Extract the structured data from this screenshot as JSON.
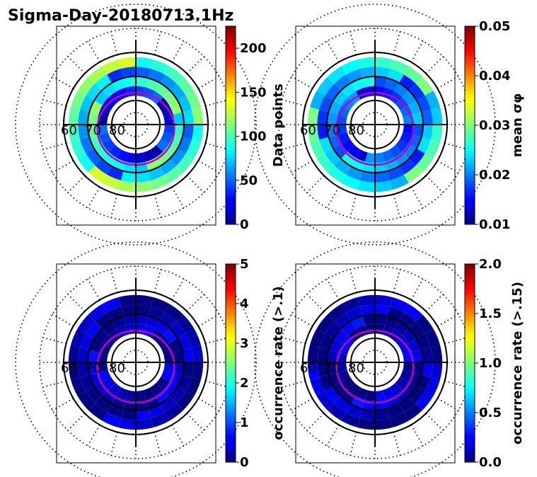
{
  "figure": {
    "title": "Sigma-Day-20180713.1Hz"
  },
  "chart_data": [
    {
      "type": "heatmap",
      "projection": "polar (magnetic latitude / MLT)",
      "ring_labels": [
        "60",
        "70",
        "80"
      ],
      "colorbar": {
        "label": "Data points",
        "range": [
          0,
          225
        ],
        "ticks": [
          "0",
          "50",
          "100",
          "150",
          "200"
        ],
        "tick_values": [
          0,
          50,
          100,
          150,
          200
        ],
        "colormap": "jet"
      },
      "ring_data": [
        {
          "mlat": 64,
          "value": 110
        },
        {
          "mlat": 68,
          "value": 60
        },
        {
          "mlat": 72,
          "value": 95
        },
        {
          "mlat": 76,
          "value": 30
        }
      ]
    },
    {
      "type": "heatmap",
      "projection": "polar (magnetic latitude / MLT)",
      "ring_labels": [
        "60",
        "70",
        "80"
      ],
      "colorbar": {
        "label": "mean σφ",
        "range": [
          0.01,
          0.05
        ],
        "ticks": [
          "0.01",
          "0.02",
          "0.03",
          "0.04",
          "0.05"
        ],
        "tick_values": [
          0.01,
          0.02,
          0.03,
          0.04,
          0.05
        ],
        "colormap": "jet"
      },
      "ring_data": [
        {
          "mlat": 64,
          "value": 0.026
        },
        {
          "mlat": 68,
          "value": 0.02
        },
        {
          "mlat": 72,
          "value": 0.022
        },
        {
          "mlat": 76,
          "value": 0.017
        }
      ]
    },
    {
      "type": "heatmap",
      "projection": "polar (magnetic latitude / MLT)",
      "ring_labels": [
        "60",
        "70",
        "80"
      ],
      "colorbar": {
        "label": "occurrence rate (>.1)",
        "range": [
          0,
          5
        ],
        "ticks": [
          "0",
          "1",
          "2",
          "3",
          "4",
          "5"
        ],
        "tick_values": [
          0,
          1,
          2,
          3,
          4,
          5
        ],
        "colormap": "jet"
      },
      "ring_data": [
        {
          "mlat": 64,
          "value": 0.1
        },
        {
          "mlat": 68,
          "value": 0.1
        },
        {
          "mlat": 72,
          "value": 0.2
        },
        {
          "mlat": 76,
          "value": 0.1
        }
      ]
    },
    {
      "type": "heatmap",
      "projection": "polar (magnetic latitude / MLT)",
      "ring_labels": [
        "60",
        "70",
        "80"
      ],
      "colorbar": {
        "label": "occurrence rate (>.15)",
        "range": [
          0,
          2
        ],
        "ticks": [
          "0.0",
          "0.5",
          "1.0",
          "1.5",
          "2.0"
        ],
        "tick_values": [
          0,
          0.5,
          1.0,
          1.5,
          2.0
        ],
        "colormap": "jet"
      },
      "ring_data": [
        {
          "mlat": 64,
          "value": 0.05
        },
        {
          "mlat": 68,
          "value": 0.05
        },
        {
          "mlat": 72,
          "value": 0.1
        },
        {
          "mlat": 76,
          "value": 0.05
        }
      ]
    }
  ]
}
